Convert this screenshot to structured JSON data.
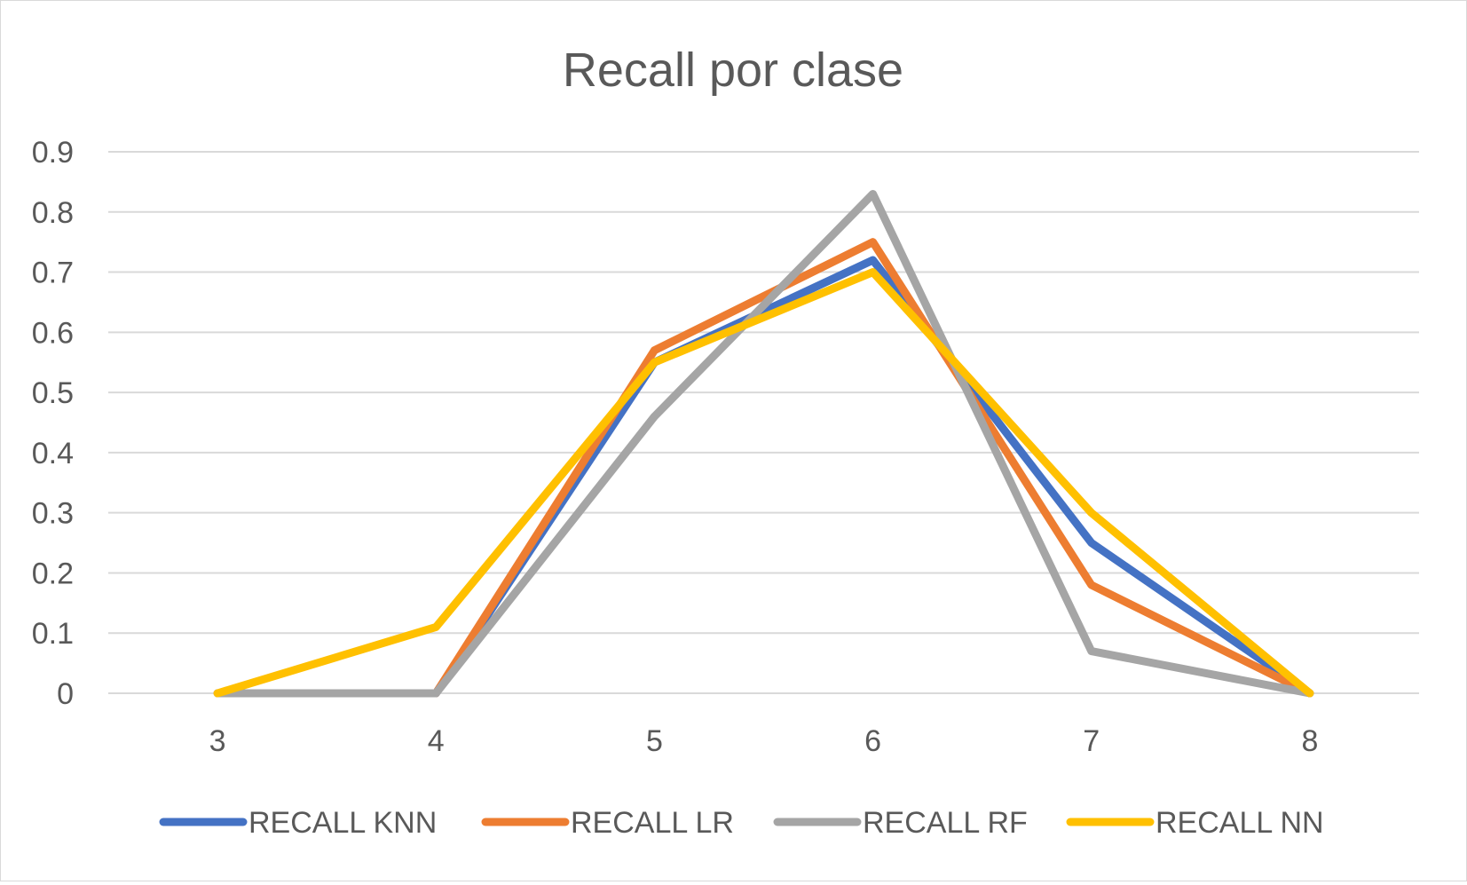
{
  "chart_data": {
    "type": "line",
    "title": "Recall por clase",
    "xlabel": "",
    "ylabel": "",
    "categories": [
      "3",
      "4",
      "5",
      "6",
      "7",
      "8"
    ],
    "ylim": [
      0,
      0.9
    ],
    "yticks": [
      "0",
      "0.1",
      "0.2",
      "0.3",
      "0.4",
      "0.5",
      "0.6",
      "0.7",
      "0.8",
      "0.9"
    ],
    "grid": true,
    "legend_position": "bottom",
    "series": [
      {
        "name": "RECALL KNN",
        "color": "#4472C4",
        "values": [
          0,
          0,
          0.55,
          0.72,
          0.25,
          0
        ]
      },
      {
        "name": "RECALL LR",
        "color": "#ED7D31",
        "values": [
          0,
          0,
          0.57,
          0.75,
          0.18,
          0
        ]
      },
      {
        "name": "RECALL RF",
        "color": "#A5A5A5",
        "values": [
          0,
          0,
          0.46,
          0.83,
          0.07,
          0
        ]
      },
      {
        "name": "RECALL NN",
        "color": "#FFC000",
        "values": [
          0,
          0.11,
          0.55,
          0.7,
          0.3,
          0
        ]
      }
    ]
  }
}
